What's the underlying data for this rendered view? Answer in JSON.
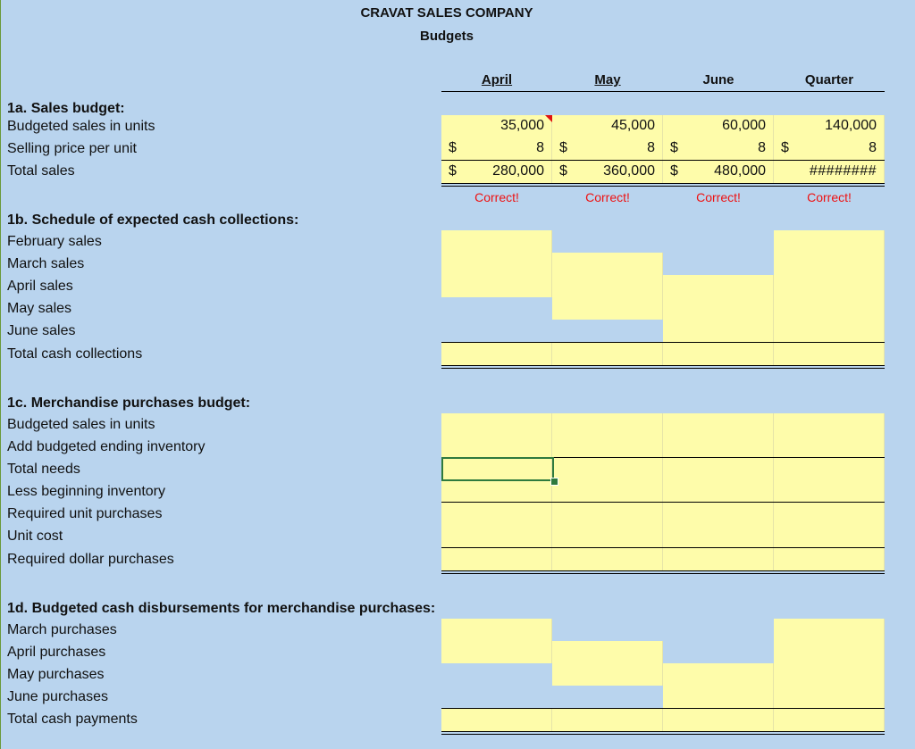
{
  "company_title": "CRAVAT SALES COMPANY",
  "subtitle": "Budgets",
  "columns": [
    "April",
    "May",
    "June",
    "Quarter"
  ],
  "section_1a": {
    "heading": "1a. Sales budget:",
    "rows": [
      {
        "label": "Budgeted sales in units",
        "values": [
          "35,000",
          "45,000",
          "60,000",
          "140,000"
        ]
      },
      {
        "label": "Selling price per unit",
        "currency": "$",
        "values": [
          "8",
          "8",
          "8",
          "8"
        ]
      },
      {
        "label": "Total sales",
        "currency": "$",
        "values": [
          "280,000",
          "360,000",
          "480,000",
          "########"
        ]
      }
    ],
    "feedback": [
      "Correct!",
      "Correct!",
      "Correct!",
      "Correct!"
    ]
  },
  "section_1b": {
    "heading": "1b. Schedule of expected cash collections:",
    "rows": [
      "February sales",
      "March sales",
      "April sales",
      "May sales",
      "June sales",
      "Total cash collections"
    ]
  },
  "section_1c": {
    "heading": "1c. Merchandise purchases budget:",
    "rows": [
      "Budgeted sales in units",
      "Add budgeted ending inventory",
      "Total needs",
      "Less beginning inventory",
      "Required unit purchases",
      "Unit cost",
      "Required dollar purchases"
    ]
  },
  "section_1d": {
    "heading": "1d. Budgeted cash disbursements for merchandise purchases:",
    "rows": [
      "March purchases",
      "April purchases",
      "May purchases",
      "June purchases",
      "Total cash payments"
    ]
  },
  "colors": {
    "background": "#b9d4ee",
    "input_cell": "#fefcaa",
    "correct_text": "#e11111",
    "selection": "#2f7a3e"
  },
  "icons": {
    "comment_indicator": "red-triangle-comment-icon",
    "fill_handle": "fill-handle-icon"
  }
}
